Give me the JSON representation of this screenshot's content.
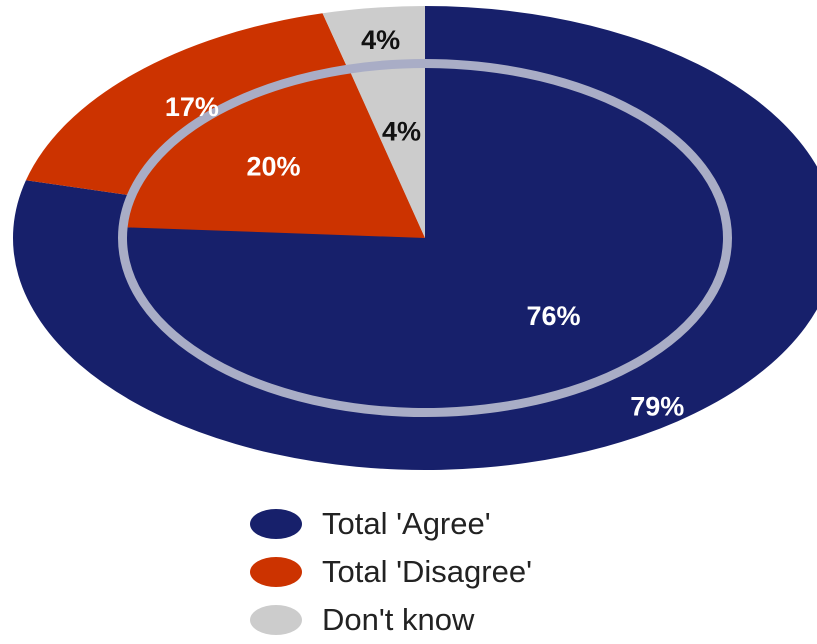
{
  "chart_data": {
    "type": "pie",
    "rings": [
      {
        "ring": "outer",
        "slices": [
          {
            "category": "Total 'Agree'",
            "value": 79,
            "label": "79%"
          },
          {
            "category": "Total 'Disagree'",
            "value": 17,
            "label": "17%"
          },
          {
            "category": "Don't know",
            "value": 4,
            "label": "4%"
          }
        ]
      },
      {
        "ring": "inner",
        "slices": [
          {
            "category": "Total 'Agree'",
            "value": 76,
            "label": "76%"
          },
          {
            "category": "Total 'Disagree'",
            "value": 20,
            "label": "20%"
          },
          {
            "category": "Don't know",
            "value": 4,
            "label": "4%"
          }
        ]
      }
    ],
    "legend": {
      "placement": "bottom",
      "entries": [
        {
          "label": "Total 'Agree'",
          "color": "#17206b"
        },
        {
          "label": "Total 'Disagree'",
          "color": "#cc3300"
        },
        {
          "label": "Don't know",
          "color": "#cccccc"
        }
      ]
    },
    "label_colors": {
      "Total 'Agree'": "#ffffff",
      "Total 'Disagree'": "#ffffff",
      "Don't know": "#111111"
    },
    "separator_color": "#a9adc6"
  }
}
